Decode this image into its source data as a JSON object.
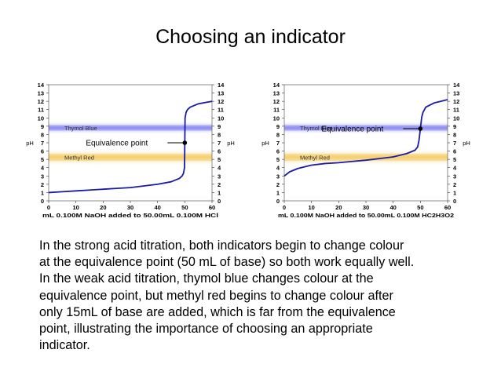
{
  "slide": {
    "title": "Choosing an indicator",
    "body": [
      "In the strong acid titration, both indicators begin to change colour",
      "at the equivalence point (50 mL of base) so both work equally well.",
      "In the weak acid titration, thymol blue changes colour at the",
      "equivalence point, but methyl red begins to change colour after",
      "only 15mL of base are added, which is far from the equivalence",
      "point, illustrating the importance of choosing an appropriate",
      "indicator."
    ]
  },
  "chart_data": [
    {
      "type": "line",
      "xlabel": "mL 0.100M NaOH added to 50.00mL 0.100M HCl",
      "ylabel": "pH",
      "xlim": [
        0,
        60
      ],
      "ylim": [
        0,
        14
      ],
      "xticks": [
        0,
        10,
        20,
        30,
        40,
        50,
        60
      ],
      "yticks": [
        0,
        1,
        2,
        3,
        4,
        5,
        6,
        7,
        8,
        9,
        10,
        11,
        12,
        13,
        14
      ],
      "bands": [
        {
          "label": "Thymol Blue",
          "from": 8.0,
          "to": 9.6,
          "color": "#8c8cf0"
        },
        {
          "label": "Methyl Red",
          "from": 4.2,
          "to": 6.3,
          "color": "#f5d070"
        }
      ],
      "annotation": {
        "label": "Equivalence point",
        "x": 50,
        "y": 7
      },
      "series": [
        {
          "name": "pH",
          "color": "#1a1aa8",
          "x": [
            0,
            5,
            10,
            15,
            20,
            25,
            30,
            35,
            40,
            45,
            48,
            49,
            49.5,
            49.9,
            50,
            50.1,
            50.5,
            51,
            52,
            55,
            60
          ],
          "y": [
            1.0,
            1.1,
            1.2,
            1.3,
            1.4,
            1.5,
            1.6,
            1.8,
            2.0,
            2.3,
            2.7,
            3.0,
            3.3,
            4.0,
            7.0,
            10.0,
            10.7,
            11.0,
            11.3,
            11.7,
            12.0
          ]
        }
      ]
    },
    {
      "type": "line",
      "xlabel": "mL 0.100M NaOH added to 50.00mL 0.100M HC2H3O2",
      "ylabel": "pH",
      "xlim": [
        0,
        60
      ],
      "ylim": [
        0,
        14
      ],
      "xticks": [
        0,
        10,
        20,
        30,
        40,
        50,
        60
      ],
      "yticks": [
        0,
        1,
        2,
        3,
        4,
        5,
        6,
        7,
        8,
        9,
        10,
        11,
        12,
        13,
        14
      ],
      "bands": [
        {
          "label": "Thymol Blue",
          "from": 8.0,
          "to": 9.6,
          "color": "#8c8cf0"
        },
        {
          "label": "Methyl Red",
          "from": 4.2,
          "to": 6.3,
          "color": "#f5d070"
        }
      ],
      "annotation": {
        "label": "Equivalence point",
        "x": 50,
        "y": 8.7
      },
      "series": [
        {
          "name": "pH",
          "color": "#1a1aa8",
          "x": [
            0,
            2,
            5,
            10,
            15,
            20,
            25,
            30,
            35,
            40,
            45,
            48,
            49,
            49.5,
            50,
            50.5,
            51,
            52,
            55,
            60
          ],
          "y": [
            3.0,
            3.5,
            3.9,
            4.3,
            4.5,
            4.6,
            4.75,
            4.9,
            5.1,
            5.3,
            5.7,
            6.1,
            6.5,
            7.3,
            8.7,
            10.1,
            10.7,
            11.3,
            11.8,
            12.2
          ]
        }
      ]
    }
  ]
}
